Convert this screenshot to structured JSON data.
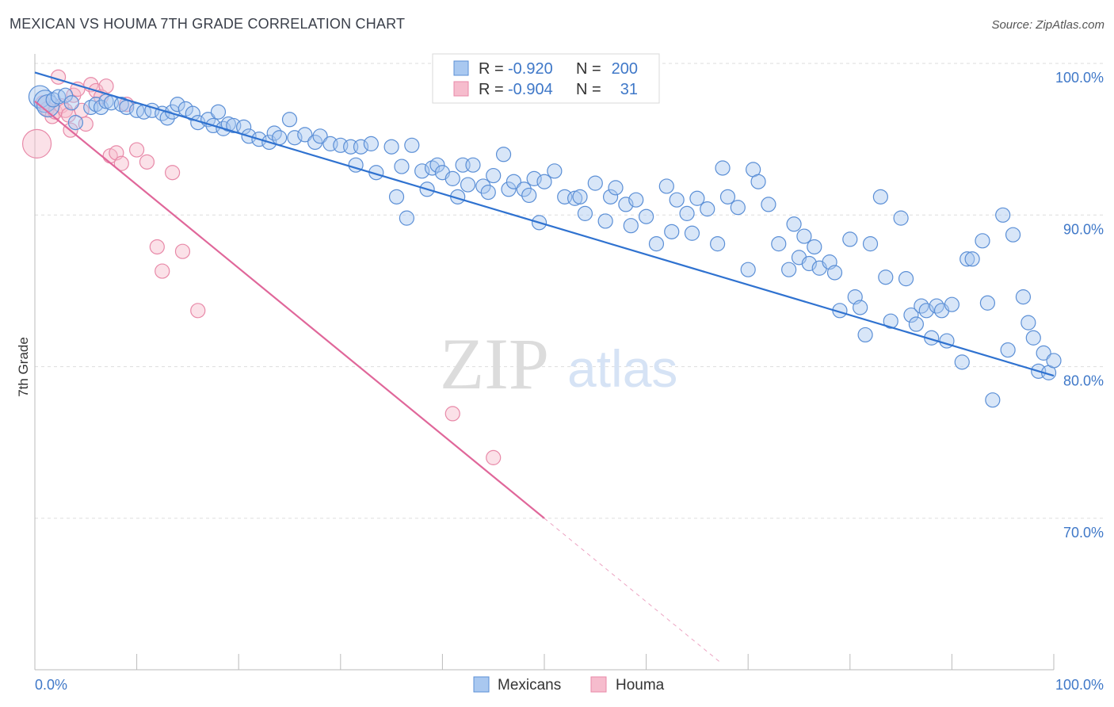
{
  "title": "MEXICAN VS HOUMA 7TH GRADE CORRELATION CHART",
  "source": "Source: ZipAtlas.com",
  "watermark": {
    "zip": "ZIP",
    "atlas": "atlas"
  },
  "colors": {
    "blue_fill": "#a9c8f0",
    "blue_stroke": "#5b8fd6",
    "blue_line": "#2f72d0",
    "pink_fill": "#f6bccd",
    "pink_stroke": "#e889a8",
    "pink_line": "#e0679a",
    "text_blue": "#3f78c8",
    "grid": "#dddddd"
  },
  "legend_top": [
    {
      "r_label": "R =",
      "r_value": "-0.920",
      "n_label": "N =",
      "n_value": "200",
      "series": "Mexicans"
    },
    {
      "r_label": "R =",
      "r_value": "-0.904",
      "n_label": "N =",
      "n_value": "31",
      "series": "Houma"
    }
  ],
  "chart_data": {
    "type": "scatter",
    "title": "MEXICAN VS HOUMA 7TH GRADE CORRELATION CHART",
    "xlabel": "",
    "ylabel": "7th Grade",
    "x_ticks": [
      "0.0%",
      "100.0%"
    ],
    "y_ticks": [
      "100.0%",
      "90.0%",
      "80.0%",
      "70.0%"
    ],
    "xlim": [
      0,
      100
    ],
    "ylim": [
      60,
      101.5
    ],
    "grid": true,
    "legend": "bottom-center",
    "series": [
      {
        "name": "Mexicans",
        "trend": {
          "x": [
            0,
            100
          ],
          "y": [
            99.4,
            79.4
          ]
        },
        "points": [
          [
            0.5,
            97.8
          ],
          [
            1,
            97.5
          ],
          [
            1.3,
            97.2
          ],
          [
            1.8,
            97.6
          ],
          [
            2.3,
            97.8
          ],
          [
            3,
            97.9
          ],
          [
            3.6,
            97.4
          ],
          [
            4,
            96.1
          ],
          [
            5.5,
            97.1
          ],
          [
            6,
            97.3
          ],
          [
            6.5,
            97.1
          ],
          [
            7,
            97.5
          ],
          [
            7.5,
            97.4
          ],
          [
            8.5,
            97.3
          ],
          [
            9,
            97.1
          ],
          [
            10,
            96.9
          ],
          [
            10.7,
            96.8
          ],
          [
            11.5,
            96.9
          ],
          [
            12.5,
            96.7
          ],
          [
            13,
            96.4
          ],
          [
            13.5,
            96.8
          ],
          [
            14,
            97.3
          ],
          [
            14.8,
            97
          ],
          [
            15.5,
            96.7
          ],
          [
            16,
            96.1
          ],
          [
            17,
            96.3
          ],
          [
            17.5,
            95.9
          ],
          [
            18,
            96.8
          ],
          [
            18.5,
            95.7
          ],
          [
            19,
            96
          ],
          [
            19.5,
            95.9
          ],
          [
            20.5,
            95.8
          ],
          [
            21,
            95.2
          ],
          [
            22,
            95
          ],
          [
            23,
            94.8
          ],
          [
            23.5,
            95.4
          ],
          [
            24,
            95.1
          ],
          [
            25,
            96.3
          ],
          [
            25.5,
            95.1
          ],
          [
            26.5,
            95.3
          ],
          [
            27.5,
            94.8
          ],
          [
            28,
            95.2
          ],
          [
            29,
            94.7
          ],
          [
            30,
            94.6
          ],
          [
            31,
            94.5
          ],
          [
            31.5,
            93.3
          ],
          [
            32,
            94.5
          ],
          [
            33,
            94.7
          ],
          [
            33.5,
            92.8
          ],
          [
            35,
            94.5
          ],
          [
            35.5,
            91.2
          ],
          [
            36,
            93.2
          ],
          [
            36.5,
            89.8
          ],
          [
            37,
            94.6
          ],
          [
            38,
            92.9
          ],
          [
            38.5,
            91.7
          ],
          [
            39,
            93.1
          ],
          [
            39.5,
            93.3
          ],
          [
            40,
            92.8
          ],
          [
            41,
            92.4
          ],
          [
            41.5,
            91.2
          ],
          [
            42,
            93.3
          ],
          [
            42.5,
            92
          ],
          [
            43,
            93.3
          ],
          [
            44,
            91.9
          ],
          [
            44.5,
            91.5
          ],
          [
            45,
            92.6
          ],
          [
            46,
            94
          ],
          [
            46.5,
            91.7
          ],
          [
            47,
            92.2
          ],
          [
            48,
            91.7
          ],
          [
            48.5,
            91.3
          ],
          [
            49,
            92.4
          ],
          [
            49.5,
            89.5
          ],
          [
            50,
            92.2
          ],
          [
            51,
            92.9
          ],
          [
            52,
            91.2
          ],
          [
            53,
            91.1
          ],
          [
            53.5,
            91.2
          ],
          [
            54,
            90.1
          ],
          [
            55,
            92.1
          ],
          [
            56,
            89.6
          ],
          [
            56.5,
            91.2
          ],
          [
            57,
            91.8
          ],
          [
            58,
            90.7
          ],
          [
            58.5,
            89.3
          ],
          [
            59,
            91
          ],
          [
            60,
            89.9
          ],
          [
            61,
            88.1
          ],
          [
            62,
            91.9
          ],
          [
            62.5,
            88.9
          ],
          [
            63,
            91
          ],
          [
            64,
            90.1
          ],
          [
            64.5,
            88.8
          ],
          [
            65,
            91.1
          ],
          [
            66,
            90.4
          ],
          [
            67,
            88.1
          ],
          [
            67.5,
            93.1
          ],
          [
            68,
            91.2
          ],
          [
            69,
            90.5
          ],
          [
            70,
            86.4
          ],
          [
            70.5,
            93
          ],
          [
            71,
            92.2
          ],
          [
            72,
            90.7
          ],
          [
            73,
            88.1
          ],
          [
            74,
            86.4
          ],
          [
            74.5,
            89.4
          ],
          [
            75,
            87.2
          ],
          [
            75.5,
            88.6
          ],
          [
            76,
            86.8
          ],
          [
            76.5,
            87.9
          ],
          [
            77,
            86.5
          ],
          [
            78,
            86.9
          ],
          [
            78.5,
            86.2
          ],
          [
            79,
            83.7
          ],
          [
            80,
            88.4
          ],
          [
            80.5,
            84.6
          ],
          [
            81,
            83.9
          ],
          [
            81.5,
            82.1
          ],
          [
            82,
            88.1
          ],
          [
            83,
            91.2
          ],
          [
            83.5,
            85.9
          ],
          [
            84,
            83
          ],
          [
            85,
            89.8
          ],
          [
            85.5,
            85.8
          ],
          [
            86,
            83.4
          ],
          [
            86.5,
            82.8
          ],
          [
            87,
            84
          ],
          [
            87.5,
            83.7
          ],
          [
            88,
            81.9
          ],
          [
            88.5,
            84
          ],
          [
            89,
            83.7
          ],
          [
            89.5,
            81.7
          ],
          [
            90,
            84.1
          ],
          [
            91,
            80.3
          ],
          [
            91.5,
            87.1
          ],
          [
            92,
            87.1
          ],
          [
            93,
            88.3
          ],
          [
            93.5,
            84.2
          ],
          [
            94,
            77.8
          ],
          [
            95,
            90
          ],
          [
            95.5,
            81.1
          ],
          [
            96,
            88.7
          ],
          [
            97,
            84.6
          ],
          [
            97.5,
            82.9
          ],
          [
            98,
            81.9
          ],
          [
            98.5,
            79.7
          ],
          [
            99,
            80.9
          ],
          [
            99.5,
            79.6
          ],
          [
            100,
            80.4
          ]
        ]
      },
      {
        "name": "Houma",
        "trend": {
          "x": [
            0,
            50
          ],
          "y": [
            97.5,
            70.0
          ]
        },
        "points": [
          [
            0.2,
            94.7
          ],
          [
            0.8,
            97.4
          ],
          [
            1.2,
            97
          ],
          [
            1.7,
            96.5
          ],
          [
            2,
            96.8
          ],
          [
            2.3,
            99.1
          ],
          [
            2.6,
            97.2
          ],
          [
            3,
            96.9
          ],
          [
            3.3,
            96.6
          ],
          [
            3.5,
            95.6
          ],
          [
            3.8,
            97.9
          ],
          [
            4.2,
            98.3
          ],
          [
            4.6,
            96.9
          ],
          [
            5,
            96
          ],
          [
            5.5,
            98.6
          ],
          [
            6,
            98.2
          ],
          [
            6.5,
            97.8
          ],
          [
            7,
            98.5
          ],
          [
            7.4,
            93.9
          ],
          [
            8,
            94.1
          ],
          [
            8.5,
            93.4
          ],
          [
            9,
            97.3
          ],
          [
            10,
            94.3
          ],
          [
            11,
            93.5
          ],
          [
            12,
            87.9
          ],
          [
            12.5,
            86.3
          ],
          [
            13.5,
            92.8
          ],
          [
            14.5,
            87.6
          ],
          [
            16,
            83.7
          ],
          [
            41,
            76.9
          ],
          [
            45,
            74
          ]
        ]
      }
    ]
  },
  "legend_bottom": [
    {
      "label": "Mexicans"
    },
    {
      "label": "Houma"
    }
  ]
}
